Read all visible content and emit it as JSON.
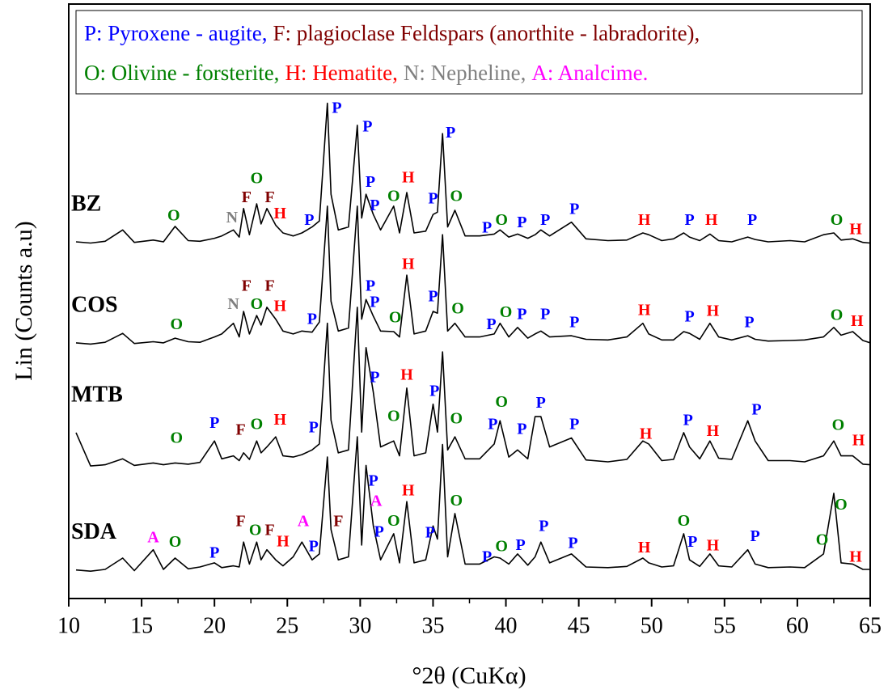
{
  "chart_data": {
    "type": "line",
    "xlabel": "°2θ (CuKα)",
    "ylabel": "Lin (Counts a.u)",
    "xlim": [
      10,
      65
    ],
    "xticks": [
      10,
      15,
      20,
      25,
      30,
      35,
      40,
      45,
      50,
      55,
      60,
      65
    ],
    "ylim": [
      0,
      100
    ],
    "x": [
      10.5,
      11.5,
      12.5,
      13.7,
      14.5,
      15.8,
      16.5,
      17.3,
      18.2,
      19.0,
      20.0,
      20.5,
      21.3,
      21.7,
      22.0,
      22.4,
      22.9,
      23.2,
      23.6,
      24.2,
      24.7,
      25.4,
      26.0,
      26.7,
      27.2,
      27.75,
      28.0,
      28.5,
      29.2,
      29.8,
      30.1,
      30.4,
      30.9,
      31.4,
      32.3,
      32.7,
      33.2,
      33.7,
      34.5,
      35.0,
      35.3,
      35.65,
      36.0,
      36.5,
      37.2,
      38.2,
      39.2,
      39.6,
      40.2,
      40.8,
      41.5,
      42.0,
      42.4,
      43.0,
      44.5,
      45.5,
      47.0,
      48.3,
      49.4,
      49.8,
      50.7,
      51.5,
      52.2,
      52.6,
      53.3,
      54.0,
      54.6,
      55.5,
      56.6,
      57.1,
      58.0,
      59.5,
      60.5,
      61.8,
      62.5,
      63.0,
      63.8,
      64.5,
      65.0
    ],
    "series": [
      {
        "name": "BZ",
        "color": "#000000",
        "values": [
          60.0,
          59.8,
          60.1,
          62.0,
          59.9,
          60.3,
          60.0,
          62.6,
          60.2,
          60.1,
          60.6,
          61.0,
          62.0,
          60.8,
          65.6,
          61.2,
          66.4,
          63.0,
          65.6,
          62.8,
          61.5,
          61.0,
          61.5,
          62.5,
          63.5,
          83.3,
          68.0,
          62.0,
          62.5,
          79.6,
          64.0,
          68.0,
          64.6,
          62.0,
          66.0,
          61.5,
          68.3,
          61.5,
          61.8,
          64.6,
          65.0,
          78.2,
          62.5,
          65.3,
          61.0,
          61.0,
          61.3,
          62.0,
          60.8,
          61.3,
          60.6,
          61.2,
          62.0,
          61.0,
          63.3,
          60.5,
          60.2,
          60.3,
          61.5,
          61.2,
          60.2,
          60.5,
          61.5,
          60.8,
          60.2,
          61.3,
          60.2,
          60.0,
          60.8,
          60.4,
          60.0,
          60.2,
          60.0,
          61.2,
          61.5,
          60.3,
          60.5,
          59.9,
          59.8
        ]
      },
      {
        "name": "COS",
        "color": "#000000",
        "values": [
          43.0,
          42.8,
          43.1,
          44.6,
          42.9,
          43.2,
          43.0,
          43.8,
          43.2,
          43.1,
          44.0,
          44.5,
          46.3,
          44.0,
          48.3,
          44.5,
          47.6,
          46.0,
          49.0,
          47.0,
          45.0,
          44.5,
          45.0,
          44.8,
          46.5,
          66.0,
          50.0,
          45.0,
          45.5,
          66.0,
          47.0,
          50.3,
          47.5,
          45.0,
          44.9,
          44.0,
          54.4,
          44.5,
          45.0,
          48.3,
          48.0,
          61.2,
          45.0,
          46.3,
          44.0,
          44.0,
          44.5,
          46.3,
          44.0,
          45.6,
          43.8,
          44.5,
          45.0,
          44.0,
          44.2,
          43.6,
          43.5,
          44.0,
          46.3,
          44.5,
          43.5,
          43.5,
          44.9,
          44.6,
          43.6,
          46.3,
          44.0,
          43.5,
          44.2,
          43.6,
          43.3,
          43.4,
          43.5,
          44.0,
          45.6,
          44.3,
          44.9,
          43.4,
          43.0
        ]
      },
      {
        "name": "MTB",
        "color": "#000000",
        "values": [
          27.9,
          22.3,
          22.5,
          23.5,
          22.4,
          22.8,
          22.5,
          22.8,
          22.6,
          22.9,
          26.5,
          23.5,
          24.0,
          23.2,
          24.5,
          23.4,
          26.5,
          24.5,
          25.5,
          27.2,
          24.0,
          23.8,
          24.2,
          25.0,
          26.0,
          46.3,
          30.0,
          24.5,
          25.0,
          49.0,
          28.0,
          42.2,
          34.7,
          25.5,
          26.5,
          24.0,
          35.4,
          24.0,
          24.5,
          32.7,
          28.0,
          41.5,
          25.0,
          27.2,
          23.5,
          23.5,
          26.0,
          29.9,
          23.8,
          25.0,
          23.5,
          30.6,
          30.6,
          25.5,
          27.0,
          23.3,
          23.0,
          23.4,
          26.5,
          26.0,
          23.2,
          23.4,
          27.9,
          25.5,
          23.5,
          26.5,
          23.6,
          23.4,
          29.9,
          26.5,
          23.2,
          23.2,
          23.0,
          24.0,
          26.5,
          24.0,
          24.0,
          22.6,
          22.5
        ]
      },
      {
        "name": "SDA",
        "color": "#000000",
        "values": [
          4.8,
          4.6,
          4.9,
          6.8,
          4.7,
          8.2,
          4.9,
          6.8,
          5.0,
          5.3,
          6.0,
          5.2,
          5.5,
          5.3,
          9.5,
          5.8,
          9.5,
          6.5,
          8.2,
          6.5,
          5.5,
          7.0,
          9.5,
          6.5,
          7.5,
          23.8,
          11.6,
          6.5,
          7.0,
          27.2,
          9.0,
          22.4,
          12.2,
          6.5,
          10.9,
          6.0,
          16.3,
          6.0,
          6.5,
          12.2,
          10.0,
          25.9,
          7.0,
          14.3,
          5.8,
          5.8,
          7.0,
          6.8,
          5.8,
          7.5,
          5.6,
          7.0,
          9.5,
          6.0,
          7.5,
          5.3,
          5.2,
          5.4,
          6.8,
          6.0,
          5.3,
          5.5,
          10.9,
          6.5,
          5.4,
          7.5,
          5.5,
          5.3,
          8.2,
          5.8,
          5.2,
          5.3,
          5.2,
          7.5,
          17.7,
          6.0,
          5.8,
          4.9,
          4.9
        ]
      }
    ],
    "key": [
      [
        {
          "text": "P: Pyroxene - augite,",
          "color": "#0000ff"
        },
        {
          "text": "F: plagioclase Feldspars (anorthite - labradorite),",
          "color": "#800000"
        }
      ],
      [
        {
          "text": "O: Olivine - forsterite,",
          "color": "#008000"
        },
        {
          "text": "H: Hematite,",
          "color": "#ff0000"
        },
        {
          "text": "N: Nepheline,",
          "color": "#808080"
        },
        {
          "text": "A: Analcime.",
          "color": "#ff00ff"
        }
      ]
    ],
    "label_colors": {
      "P": "#0000ff",
      "F": "#800000",
      "O": "#008000",
      "H": "#ff0000",
      "N": "#808080",
      "A": "#ff00ff"
    },
    "peak_labels": [
      {
        "text": "O",
        "x": 17.2,
        "y": 64.2
      },
      {
        "text": "N",
        "x": 21.2,
        "y": 63.9
      },
      {
        "text": "F",
        "x": 22.2,
        "y": 67.3
      },
      {
        "text": "O",
        "x": 22.9,
        "y": 70.5
      },
      {
        "text": "F",
        "x": 23.8,
        "y": 67.3
      },
      {
        "text": "H",
        "x": 24.5,
        "y": 64.6
      },
      {
        "text": "P",
        "x": 26.5,
        "y": 63.5
      },
      {
        "text": "P",
        "x": 28.4,
        "y": 82.3
      },
      {
        "text": "P",
        "x": 30.5,
        "y": 79.2
      },
      {
        "text": "P",
        "x": 30.7,
        "y": 69.9
      },
      {
        "text": "P",
        "x": 31.0,
        "y": 65.9
      },
      {
        "text": "O",
        "x": 32.3,
        "y": 67.5
      },
      {
        "text": "H",
        "x": 33.3,
        "y": 70.6
      },
      {
        "text": "P",
        "x": 35.0,
        "y": 67.1
      },
      {
        "text": "P",
        "x": 36.2,
        "y": 78.2
      },
      {
        "text": "O",
        "x": 36.6,
        "y": 67.5
      },
      {
        "text": "P",
        "x": 38.7,
        "y": 62.2
      },
      {
        "text": "O",
        "x": 39.7,
        "y": 63.5
      },
      {
        "text": "P",
        "x": 41.1,
        "y": 63.1
      },
      {
        "text": "P",
        "x": 42.7,
        "y": 63.5
      },
      {
        "text": "P",
        "x": 44.7,
        "y": 65.3
      },
      {
        "text": "H",
        "x": 49.5,
        "y": 63.5
      },
      {
        "text": "P",
        "x": 52.6,
        "y": 63.5
      },
      {
        "text": "H",
        "x": 54.1,
        "y": 63.5
      },
      {
        "text": "P",
        "x": 56.9,
        "y": 63.5
      },
      {
        "text": "O",
        "x": 62.7,
        "y": 63.5
      },
      {
        "text": "H",
        "x": 64.0,
        "y": 61.9
      },
      {
        "text": "O",
        "x": 17.4,
        "y": 45.9
      },
      {
        "text": "N",
        "x": 21.3,
        "y": 49.3
      },
      {
        "text": "F",
        "x": 22.2,
        "y": 52.4
      },
      {
        "text": "O",
        "x": 22.9,
        "y": 49.3
      },
      {
        "text": "F",
        "x": 23.8,
        "y": 52.4
      },
      {
        "text": "H",
        "x": 24.5,
        "y": 49.0
      },
      {
        "text": "P",
        "x": 26.7,
        "y": 46.8
      },
      {
        "text": "P",
        "x": 30.7,
        "y": 52.4
      },
      {
        "text": "P",
        "x": 31.0,
        "y": 49.7
      },
      {
        "text": "O",
        "x": 32.4,
        "y": 47.1
      },
      {
        "text": "H",
        "x": 33.3,
        "y": 56.1
      },
      {
        "text": "P",
        "x": 35.0,
        "y": 50.6
      },
      {
        "text": "O",
        "x": 36.7,
        "y": 48.6
      },
      {
        "text": "P",
        "x": 39.0,
        "y": 45.9
      },
      {
        "text": "O",
        "x": 40.0,
        "y": 48.0
      },
      {
        "text": "P",
        "x": 41.1,
        "y": 47.6
      },
      {
        "text": "P",
        "x": 42.7,
        "y": 47.6
      },
      {
        "text": "P",
        "x": 44.7,
        "y": 46.3
      },
      {
        "text": "H",
        "x": 49.5,
        "y": 48.3
      },
      {
        "text": "P",
        "x": 52.6,
        "y": 47.2
      },
      {
        "text": "H",
        "x": 54.2,
        "y": 48.2
      },
      {
        "text": "P",
        "x": 56.7,
        "y": 46.3
      },
      {
        "text": "O",
        "x": 62.7,
        "y": 47.5
      },
      {
        "text": "H",
        "x": 64.1,
        "y": 46.5
      },
      {
        "text": "O",
        "x": 17.4,
        "y": 26.8
      },
      {
        "text": "P",
        "x": 20.0,
        "y": 29.3
      },
      {
        "text": "F",
        "x": 21.8,
        "y": 28.2
      },
      {
        "text": "O",
        "x": 22.9,
        "y": 29.1
      },
      {
        "text": "H",
        "x": 24.5,
        "y": 29.9
      },
      {
        "text": "P",
        "x": 26.8,
        "y": 28.6
      },
      {
        "text": "P",
        "x": 31.0,
        "y": 37.0
      },
      {
        "text": "O",
        "x": 32.3,
        "y": 30.5
      },
      {
        "text": "H",
        "x": 33.2,
        "y": 37.4
      },
      {
        "text": "P",
        "x": 35.1,
        "y": 34.7
      },
      {
        "text": "O",
        "x": 36.6,
        "y": 30.1
      },
      {
        "text": "P",
        "x": 39.1,
        "y": 29.1
      },
      {
        "text": "O",
        "x": 39.7,
        "y": 32.9
      },
      {
        "text": "P",
        "x": 41.1,
        "y": 28.3
      },
      {
        "text": "P",
        "x": 42.4,
        "y": 32.7
      },
      {
        "text": "P",
        "x": 44.7,
        "y": 29.1
      },
      {
        "text": "H",
        "x": 49.6,
        "y": 27.5
      },
      {
        "text": "P",
        "x": 52.5,
        "y": 29.8
      },
      {
        "text": "H",
        "x": 54.2,
        "y": 28.0
      },
      {
        "text": "P",
        "x": 57.2,
        "y": 31.6
      },
      {
        "text": "O",
        "x": 62.8,
        "y": 29.0
      },
      {
        "text": "H",
        "x": 64.2,
        "y": 26.4
      },
      {
        "text": "A",
        "x": 15.8,
        "y": 10.1
      },
      {
        "text": "O",
        "x": 17.3,
        "y": 9.3
      },
      {
        "text": "P",
        "x": 20.0,
        "y": 7.5
      },
      {
        "text": "F",
        "x": 21.8,
        "y": 12.8
      },
      {
        "text": "O",
        "x": 22.8,
        "y": 11.3
      },
      {
        "text": "F",
        "x": 23.8,
        "y": 11.3
      },
      {
        "text": "H",
        "x": 24.7,
        "y": 9.4
      },
      {
        "text": "A",
        "x": 26.1,
        "y": 12.8
      },
      {
        "text": "P",
        "x": 26.8,
        "y": 8.6
      },
      {
        "text": "F",
        "x": 28.5,
        "y": 12.8
      },
      {
        "text": "P",
        "x": 30.9,
        "y": 19.6
      },
      {
        "text": "A",
        "x": 31.1,
        "y": 16.2
      },
      {
        "text": "P",
        "x": 31.3,
        "y": 11.0
      },
      {
        "text": "O",
        "x": 32.3,
        "y": 12.9
      },
      {
        "text": "H",
        "x": 33.3,
        "y": 18.0
      },
      {
        "text": "P",
        "x": 34.8,
        "y": 10.9
      },
      {
        "text": "O",
        "x": 36.6,
        "y": 16.3
      },
      {
        "text": "P",
        "x": 38.7,
        "y": 6.8
      },
      {
        "text": "O",
        "x": 39.7,
        "y": 8.6
      },
      {
        "text": "P",
        "x": 41.0,
        "y": 8.8
      },
      {
        "text": "P",
        "x": 42.6,
        "y": 12.0
      },
      {
        "text": "P",
        "x": 44.6,
        "y": 9.1
      },
      {
        "text": "H",
        "x": 49.5,
        "y": 8.4
      },
      {
        "text": "O",
        "x": 52.2,
        "y": 12.9
      },
      {
        "text": "P",
        "x": 52.8,
        "y": 9.3
      },
      {
        "text": "H",
        "x": 54.2,
        "y": 8.7
      },
      {
        "text": "P",
        "x": 57.1,
        "y": 10.3
      },
      {
        "text": "O",
        "x": 61.7,
        "y": 9.7
      },
      {
        "text": "O",
        "x": 63.0,
        "y": 15.6
      },
      {
        "text": "H",
        "x": 64.0,
        "y": 6.8
      }
    ]
  }
}
